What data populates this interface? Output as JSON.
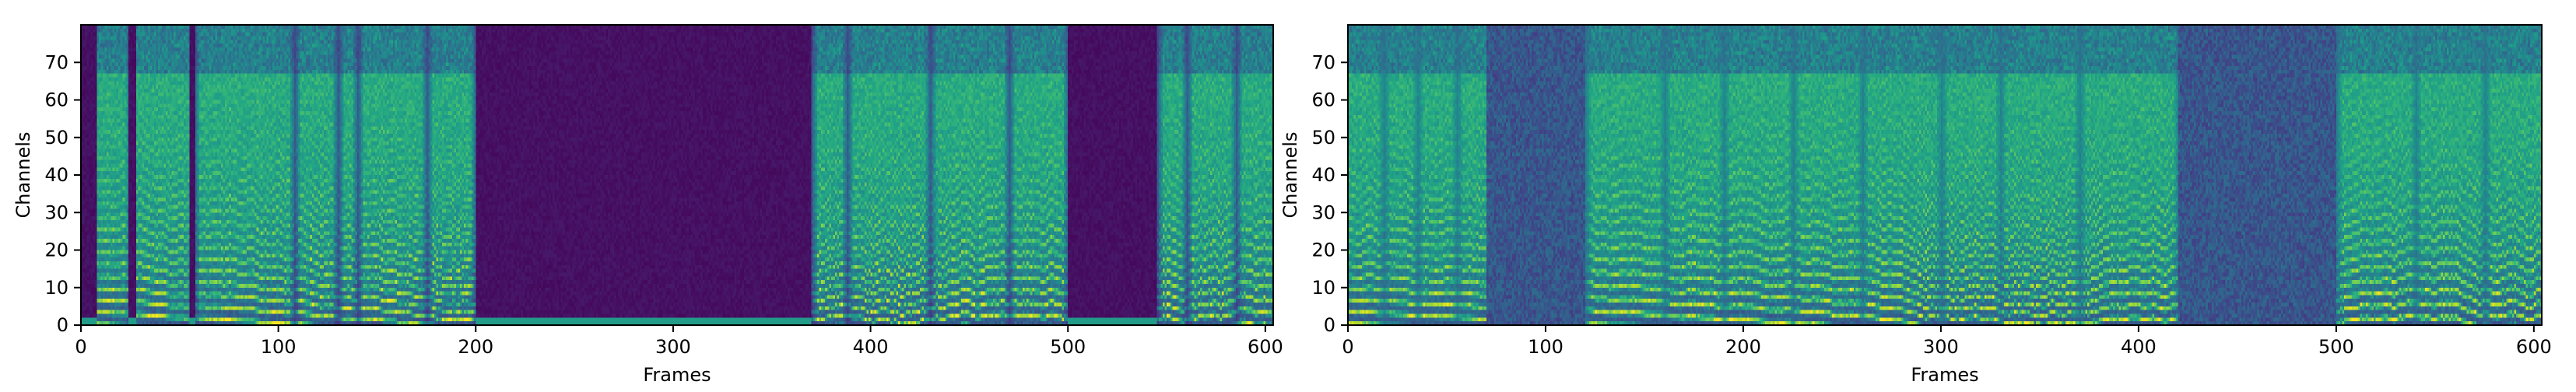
{
  "chart_data": [
    {
      "type": "heatmap",
      "title": "",
      "xlabel": "Frames",
      "ylabel": "Channels",
      "xlim": [
        0,
        604
      ],
      "ylim": [
        0,
        80
      ],
      "xticks": [
        0,
        100,
        200,
        300,
        400,
        500,
        600
      ],
      "yticks": [
        0,
        10,
        20,
        30,
        40,
        50,
        60,
        70
      ],
      "colormap": "viridis",
      "silent_regions": [
        [
          0,
          8
        ],
        [
          24,
          28
        ],
        [
          55,
          58
        ],
        [
          200,
          370
        ],
        [
          500,
          545
        ]
      ],
      "segment_boundaries": [
        25,
        57,
        108,
        130,
        140,
        175,
        200,
        370,
        388,
        430,
        470,
        500,
        545,
        560,
        585
      ]
    },
    {
      "type": "heatmap",
      "title": "",
      "xlabel": "Frames",
      "ylabel": "Channels",
      "xlim": [
        0,
        604
      ],
      "ylim": [
        0,
        80
      ],
      "xticks": [
        0,
        100,
        200,
        300,
        400,
        500,
        600
      ],
      "yticks": [
        0,
        10,
        20,
        30,
        40,
        50,
        60,
        70
      ],
      "colormap": "viridis",
      "silent_regions": [
        [
          70,
          120
        ],
        [
          420,
          500
        ]
      ],
      "segment_boundaries": [
        18,
        35,
        55,
        120,
        160,
        190,
        225,
        260,
        300,
        330,
        370,
        420,
        500,
        540,
        575
      ]
    }
  ]
}
